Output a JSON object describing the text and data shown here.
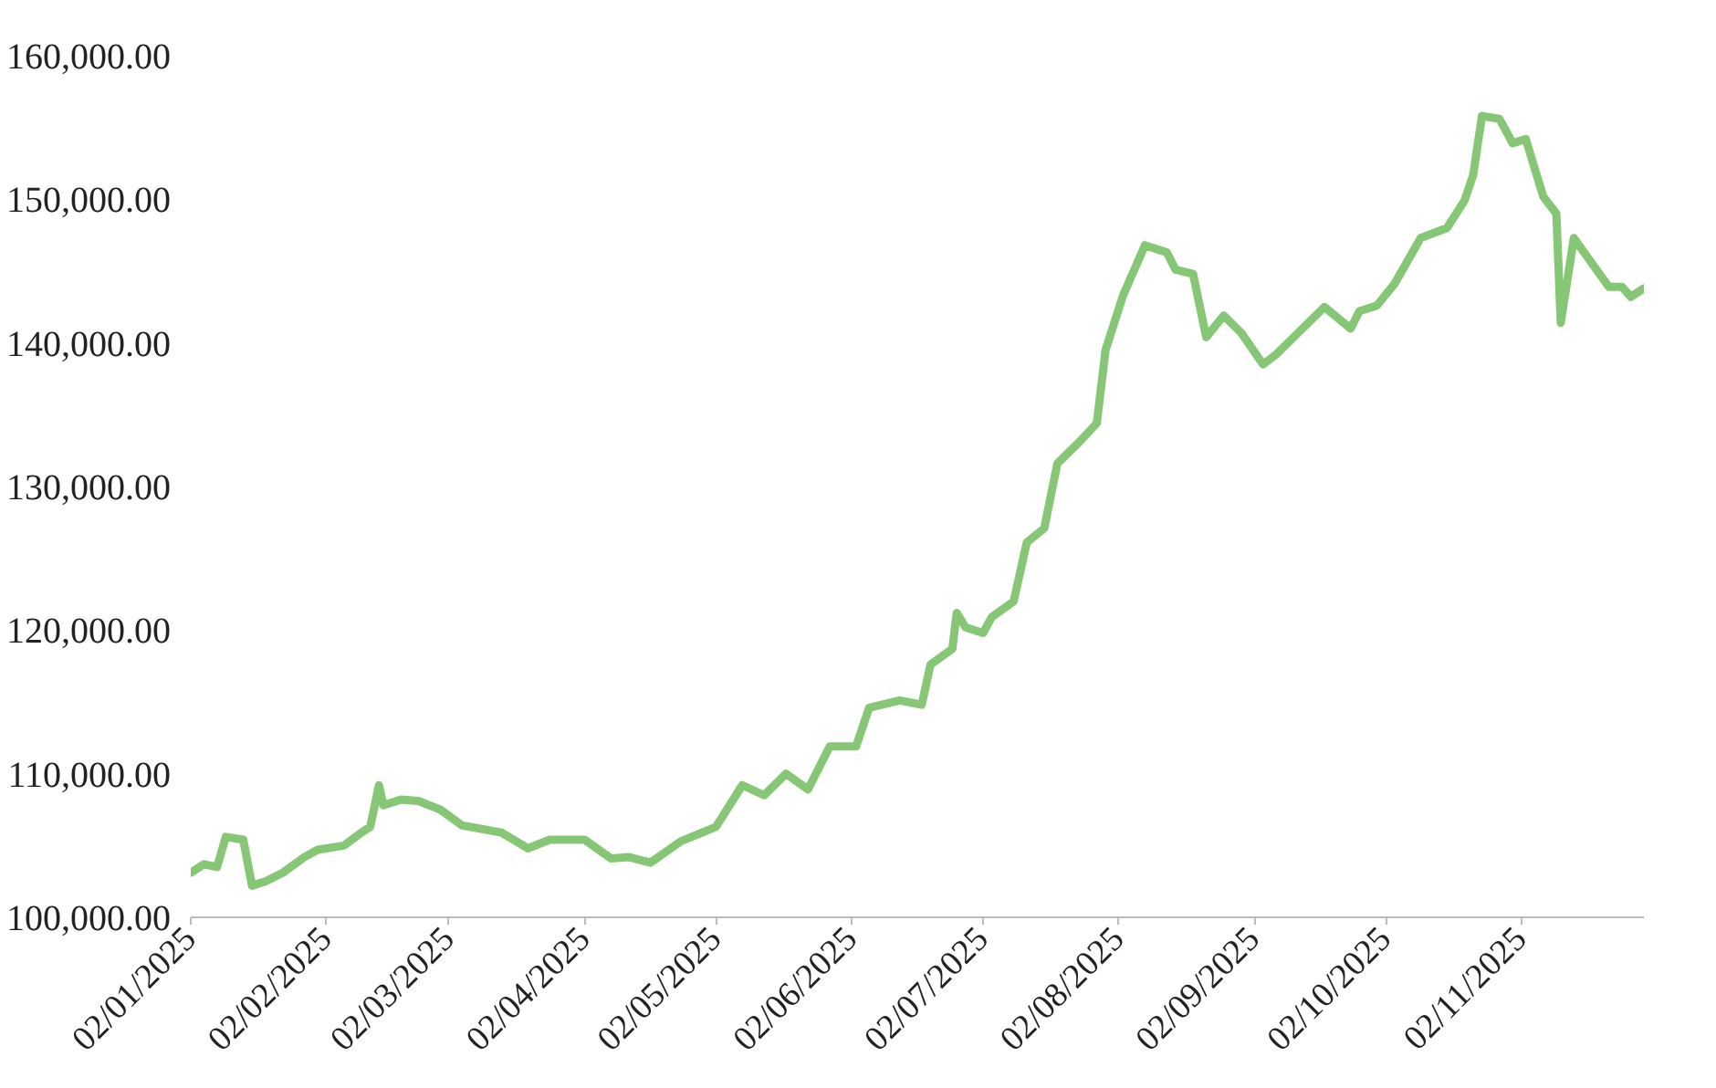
{
  "chart_data": {
    "type": "line",
    "x": [
      "2025-01-02",
      "2025-01-05",
      "2025-01-08",
      "2025-01-10",
      "2025-01-14",
      "2025-01-16",
      "2025-01-19",
      "2025-01-23",
      "2025-01-28",
      "2025-01-31",
      "2025-02-06",
      "2025-02-10",
      "2025-02-12",
      "2025-02-14",
      "2025-02-15",
      "2025-02-19",
      "2025-02-23",
      "2025-02-28",
      "2025-03-05",
      "2025-03-14",
      "2025-03-20",
      "2025-03-25",
      "2025-04-02",
      "2025-04-08",
      "2025-04-12",
      "2025-04-17",
      "2025-04-24",
      "2025-05-02",
      "2025-05-08",
      "2025-05-13",
      "2025-05-18",
      "2025-05-23",
      "2025-05-28",
      "2025-06-03",
      "2025-06-06",
      "2025-06-13",
      "2025-06-18",
      "2025-06-20",
      "2025-06-25",
      "2025-06-26",
      "2025-06-28",
      "2025-07-02",
      "2025-07-04",
      "2025-07-09",
      "2025-07-12",
      "2025-07-16",
      "2025-07-19",
      "2025-07-24",
      "2025-07-28",
      "2025-07-30",
      "2025-08-03",
      "2025-08-08",
      "2025-08-13",
      "2025-08-15",
      "2025-08-19",
      "2025-08-22",
      "2025-08-26",
      "2025-08-30",
      "2025-09-04",
      "2025-09-07",
      "2025-09-11",
      "2025-09-18",
      "2025-09-24",
      "2025-09-26",
      "2025-09-30",
      "2025-10-04",
      "2025-10-10",
      "2025-10-16",
      "2025-10-20",
      "2025-10-22",
      "2025-10-24",
      "2025-10-28",
      "2025-10-31",
      "2025-11-03",
      "2025-11-07",
      "2025-11-10",
      "2025-11-11",
      "2025-11-14",
      "2025-11-22",
      "2025-11-25",
      "2025-11-27",
      "2025-11-30"
    ],
    "series": [
      {
        "color": "#80c46e",
        "values": [
          103100,
          103700,
          103500,
          105600,
          105400,
          102200,
          102500,
          103100,
          104200,
          104700,
          105000,
          105900,
          106300,
          109200,
          107800,
          108200,
          108100,
          107500,
          106400,
          105900,
          104800,
          105400,
          105400,
          104100,
          104200,
          103800,
          105300,
          106300,
          109200,
          108500,
          110000,
          108900,
          111900,
          111900,
          114600,
          115100,
          114800,
          117600,
          118700,
          121200,
          120200,
          119800,
          120900,
          122000,
          126100,
          127100,
          131600,
          133100,
          134400,
          139500,
          143300,
          146800,
          146300,
          145100,
          144800,
          140400,
          141900,
          140700,
          138500,
          139200,
          140400,
          142500,
          141000,
          142200,
          142600,
          144100,
          147300,
          148000,
          149900,
          151700,
          155800,
          155600,
          153900,
          154200,
          150200,
          149000,
          141400,
          147300,
          143900,
          143900,
          143200,
          143800
        ]
      }
    ],
    "xlim": [
      "2025-01-02",
      "2025-11-30"
    ],
    "xticks": [
      {
        "value": "2025-01-02",
        "label": "02/01/2025"
      },
      {
        "value": "2025-02-02",
        "label": "02/02/2025"
      },
      {
        "value": "2025-03-02",
        "label": "02/03/2025"
      },
      {
        "value": "2025-04-02",
        "label": "02/04/2025"
      },
      {
        "value": "2025-05-02",
        "label": "02/05/2025"
      },
      {
        "value": "2025-06-02",
        "label": "02/06/2025"
      },
      {
        "value": "2025-07-02",
        "label": "02/07/2025"
      },
      {
        "value": "2025-08-02",
        "label": "02/08/2025"
      },
      {
        "value": "2025-09-02",
        "label": "02/09/2025"
      },
      {
        "value": "2025-10-02",
        "label": "02/10/2025"
      },
      {
        "value": "2025-11-02",
        "label": "02/11/2025"
      }
    ],
    "ylim": [
      100000,
      160000
    ],
    "yticks": [
      {
        "value": 100000,
        "label": "100,000.00"
      },
      {
        "value": 110000,
        "label": "110,000.00"
      },
      {
        "value": 120000,
        "label": "120,000.00"
      },
      {
        "value": 130000,
        "label": "130,000.00"
      },
      {
        "value": 140000,
        "label": "140,000.00"
      },
      {
        "value": 150000,
        "label": "150,000.00"
      },
      {
        "value": 160000,
        "label": "160,000.00"
      }
    ],
    "grid": false,
    "marker": "none",
    "line_style": "solid"
  }
}
